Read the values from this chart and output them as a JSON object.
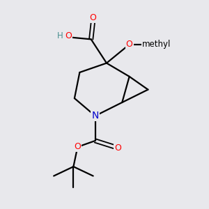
{
  "bg_color": "#e8e8ec",
  "bond_color": "#000000",
  "atom_colors": {
    "O": "#ff0000",
    "N": "#0000cc",
    "C": "#000000",
    "H": "#4a9090"
  },
  "figsize": [
    3.0,
    3.0
  ],
  "dpi": 100
}
